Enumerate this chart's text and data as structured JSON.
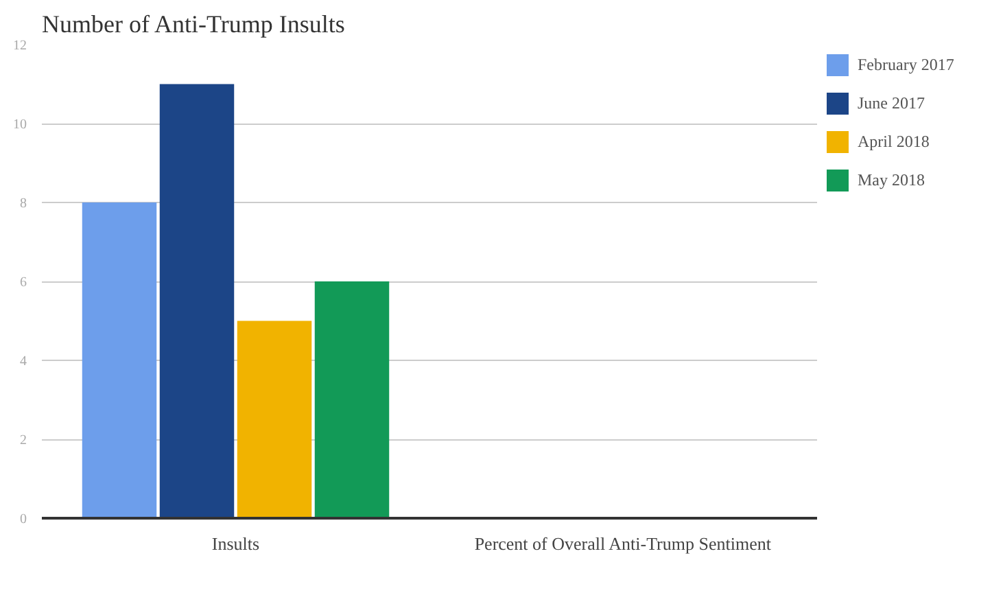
{
  "chart_data": {
    "type": "bar",
    "title": "Number of Anti-Trump Insults",
    "categories": [
      "Insults",
      "Percent of Overall Anti-Trump Sentiment"
    ],
    "series": [
      {
        "name": "February 2017",
        "color": "#6d9eeb",
        "values": [
          8,
          null
        ]
      },
      {
        "name": "June 2017",
        "color": "#1c4587",
        "values": [
          11,
          null
        ]
      },
      {
        "name": "April 2018",
        "color": "#f1b300",
        "values": [
          5,
          null
        ]
      },
      {
        "name": "May 2018",
        "color": "#129a57",
        "values": [
          6,
          null
        ]
      }
    ],
    "ylim": [
      0,
      12
    ],
    "yticks": [
      0,
      2,
      4,
      6,
      8,
      10,
      12
    ],
    "grid": "y",
    "legend": "top right"
  }
}
